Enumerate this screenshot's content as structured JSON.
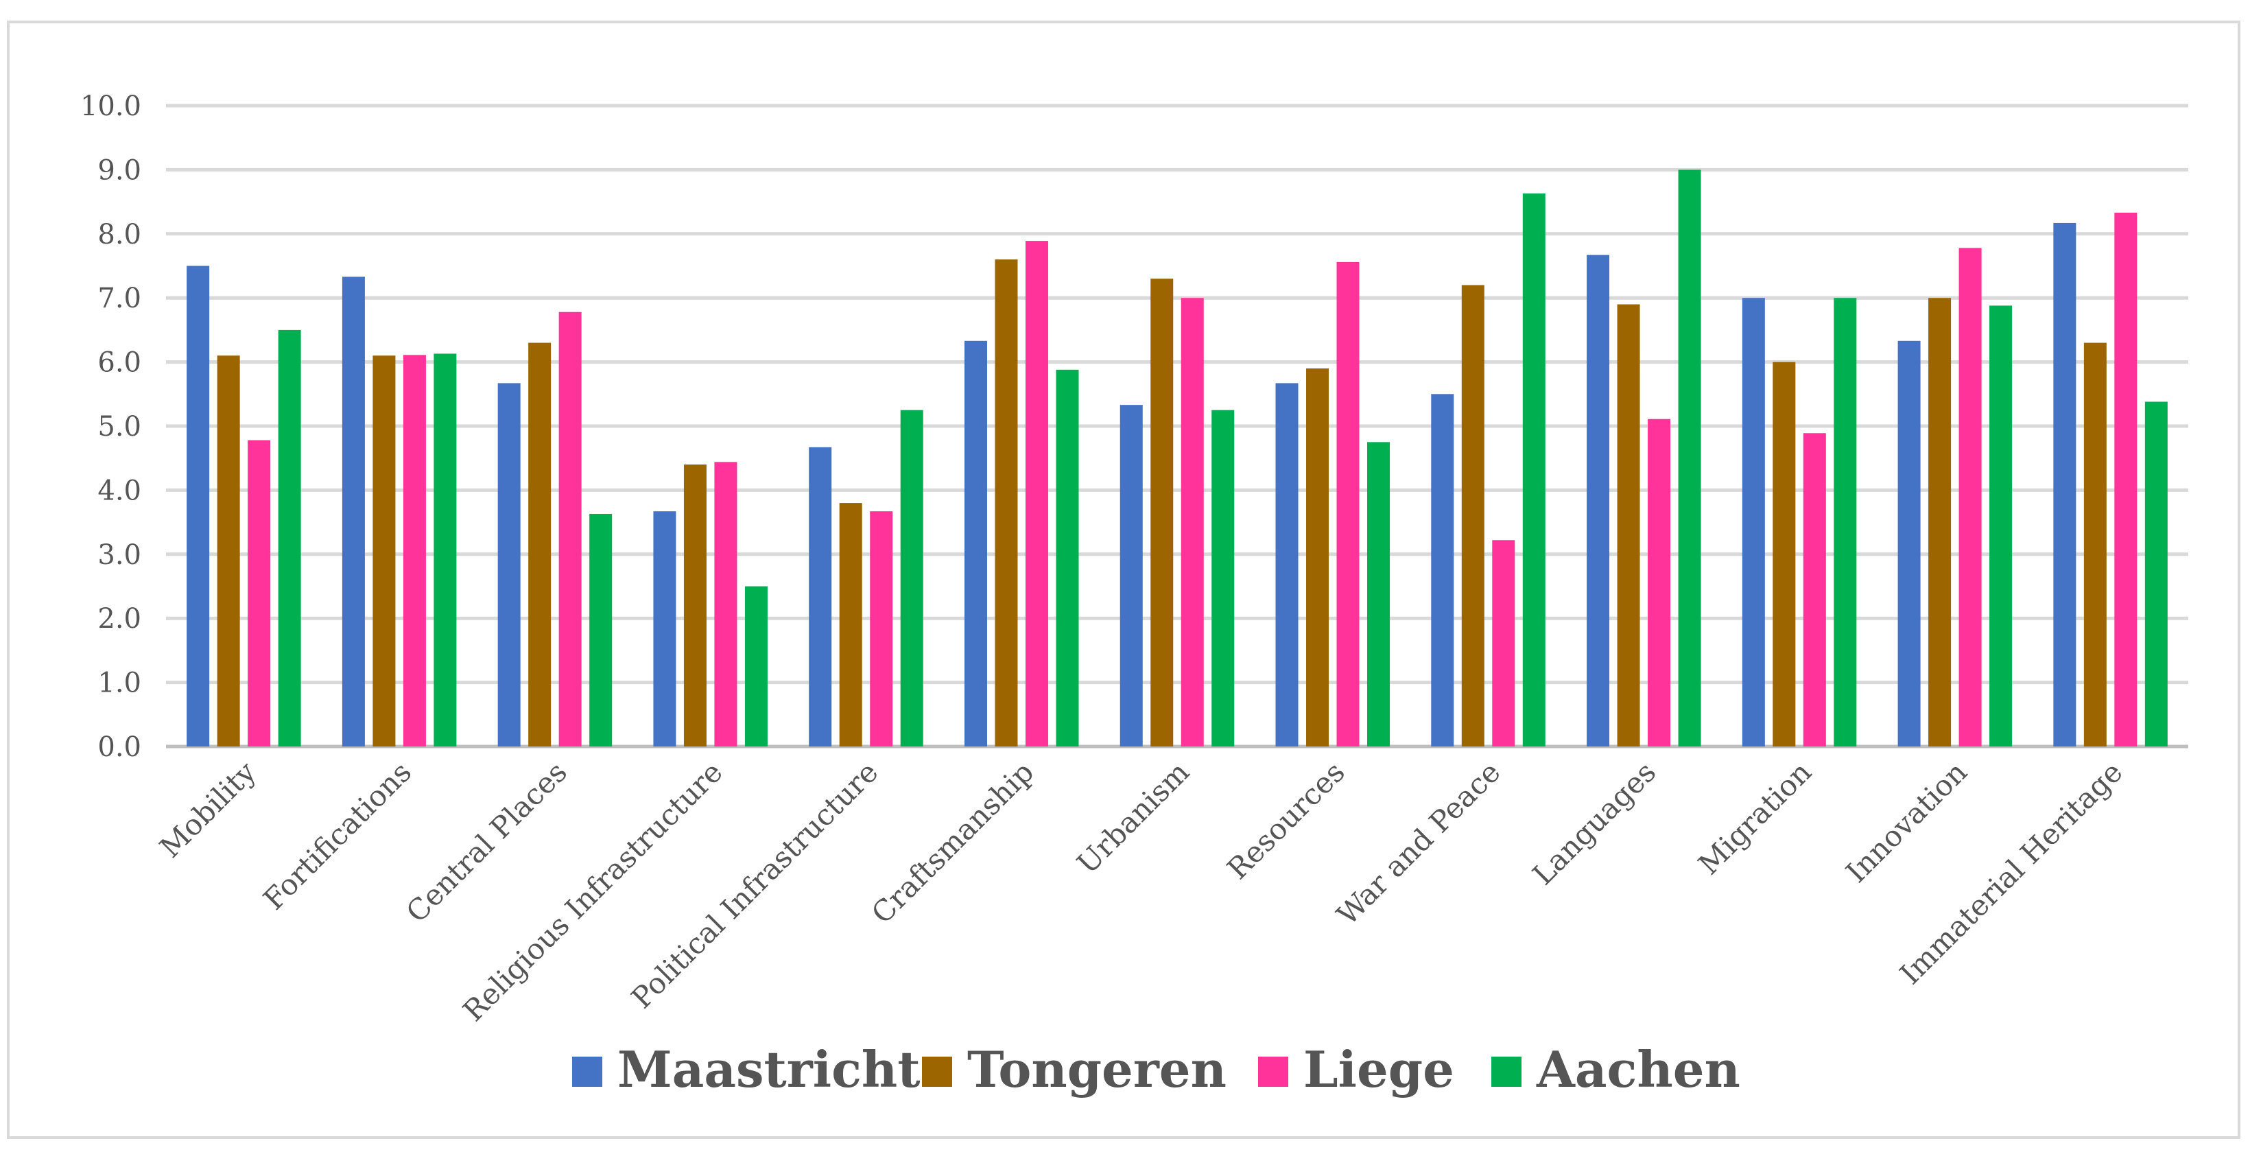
{
  "chart_data": {
    "type": "bar",
    "title": "",
    "xlabel": "",
    "ylabel": "",
    "ylim": [
      0,
      10
    ],
    "ytick_step": 1,
    "ytick_labels": [
      "0.0",
      "1.0",
      "2.0",
      "3.0",
      "4.0",
      "5.0",
      "6.0",
      "7.0",
      "8.0",
      "9.0",
      "10.0"
    ],
    "grid": true,
    "legend_position": "bottom",
    "categories": [
      "Mobility",
      "Fortifications",
      "Central Places",
      "Religious Infrastructure",
      "Political Infrastructure",
      "Craftsmanship",
      "Urbanism",
      "Resources",
      "War and Peace",
      "Languages",
      "Migration",
      "Innovation",
      "Immaterial Heritage"
    ],
    "series": [
      {
        "name": "Maastricht",
        "color": "#4472c4",
        "values": [
          7.5,
          7.33,
          5.67,
          3.67,
          4.67,
          6.33,
          5.33,
          5.67,
          5.5,
          7.67,
          7.0,
          6.33,
          8.17
        ]
      },
      {
        "name": "Tongeren",
        "color": "#9c6500",
        "values": [
          6.1,
          6.1,
          6.3,
          4.4,
          3.8,
          7.6,
          7.3,
          5.9,
          7.2,
          6.9,
          6.0,
          7.0,
          6.3
        ]
      },
      {
        "name": "Liege",
        "color": "#ff3399",
        "values": [
          4.78,
          6.11,
          6.78,
          4.44,
          3.67,
          7.89,
          7.0,
          7.56,
          3.22,
          5.11,
          4.89,
          7.78,
          8.33
        ]
      },
      {
        "name": "Aachen",
        "color": "#00b050",
        "values": [
          6.5,
          6.13,
          3.63,
          2.5,
          5.25,
          5.88,
          5.25,
          4.75,
          8.63,
          9.0,
          7.0,
          6.88,
          5.38
        ]
      }
    ]
  }
}
